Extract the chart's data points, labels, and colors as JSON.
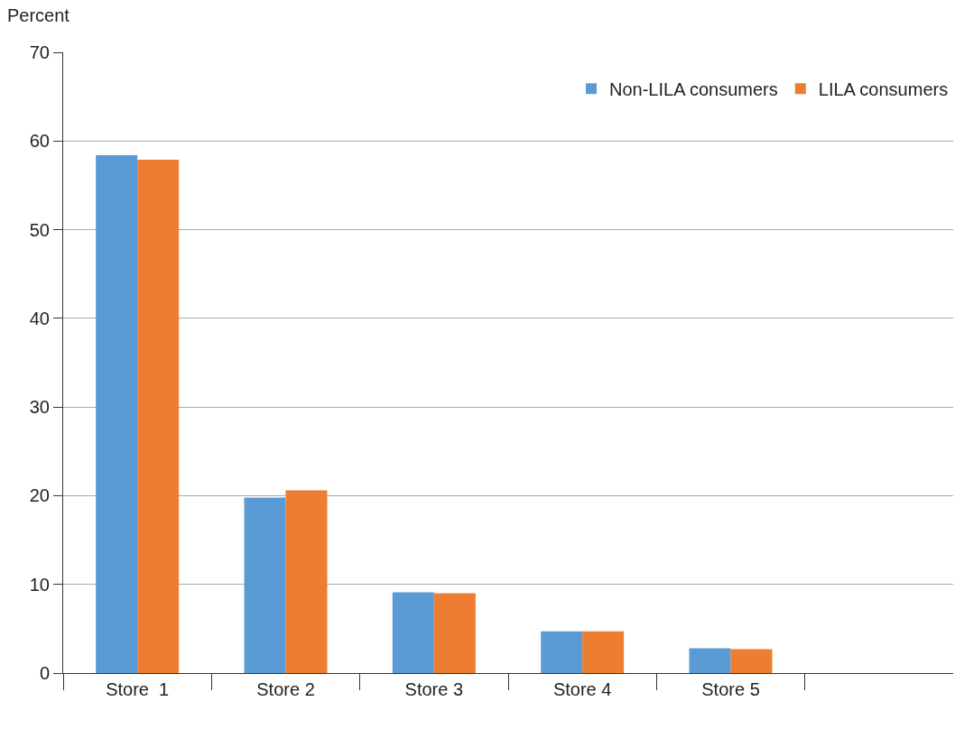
{
  "chart_data": {
    "type": "bar",
    "ylabel": "Percent",
    "categories": [
      "Store  1",
      "Store 2",
      "Store 3",
      "Store 4",
      "Store 5",
      null
    ],
    "series": [
      {
        "name": "Non-LILA consumers",
        "color": "#5b9bd5",
        "values": [
          58.4,
          19.8,
          9.1,
          4.7,
          2.8,
          null
        ]
      },
      {
        "name": "LILA consumers",
        "color": "#ed7d31",
        "values": [
          57.9,
          20.6,
          9.0,
          4.7,
          2.7,
          null
        ]
      }
    ],
    "ylim": [
      0,
      70
    ],
    "yticks": [
      0,
      10,
      20,
      30,
      40,
      50,
      60,
      70
    ],
    "grid": "y",
    "legend": "top right"
  }
}
